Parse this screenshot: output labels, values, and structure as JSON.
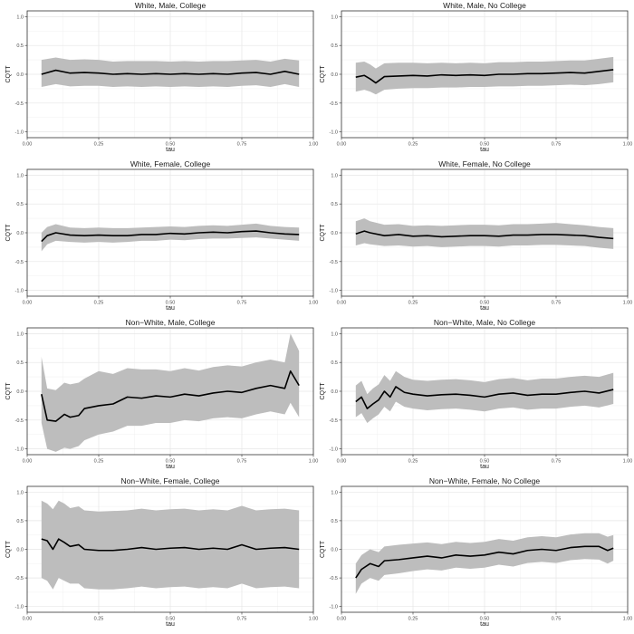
{
  "figure": {
    "xlabel": "tau",
    "ylabel": "CQTT"
  },
  "chart_data": [
    {
      "type": "line",
      "title": "White, Male, College",
      "xlabel": "tau",
      "ylabel": "CQTT",
      "xlim": [
        0,
        1
      ],
      "ylim": [
        -1.1,
        1.1
      ],
      "xticks": [
        0.0,
        0.25,
        0.5,
        0.75,
        1.0
      ],
      "xtick_labels": [
        "0.00",
        "0.25",
        "0.50",
        "0.75",
        "1.00"
      ],
      "yticks": [
        -1.0,
        -0.5,
        0.0,
        0.5,
        1.0
      ],
      "ytick_labels": [
        "-1.0",
        "-0.5",
        "0.0",
        "0.5",
        "1.0"
      ],
      "x": [
        0.05,
        0.1,
        0.15,
        0.2,
        0.25,
        0.3,
        0.35,
        0.4,
        0.45,
        0.5,
        0.55,
        0.6,
        0.65,
        0.7,
        0.75,
        0.8,
        0.85,
        0.9,
        0.95
      ],
      "series": [
        {
          "name": "estimate",
          "values": [
            0.0,
            0.07,
            0.02,
            0.03,
            0.02,
            0.0,
            0.01,
            0.0,
            0.01,
            0.0,
            0.01,
            0.0,
            0.01,
            0.0,
            0.02,
            0.03,
            0.0,
            0.05,
            0.0
          ]
        },
        {
          "name": "lower",
          "values": [
            -0.22,
            -0.17,
            -0.21,
            -0.2,
            -0.2,
            -0.22,
            -0.21,
            -0.22,
            -0.21,
            -0.22,
            -0.21,
            -0.22,
            -0.21,
            -0.22,
            -0.2,
            -0.19,
            -0.22,
            -0.17,
            -0.22
          ]
        },
        {
          "name": "upper",
          "values": [
            0.25,
            0.29,
            0.25,
            0.26,
            0.25,
            0.22,
            0.23,
            0.23,
            0.23,
            0.22,
            0.23,
            0.22,
            0.23,
            0.23,
            0.24,
            0.25,
            0.22,
            0.27,
            0.24
          ]
        }
      ]
    },
    {
      "type": "line",
      "title": "White, Male, No College",
      "xlabel": "tau",
      "ylabel": "CQTT",
      "xlim": [
        0,
        1
      ],
      "ylim": [
        -1.1,
        1.1
      ],
      "xticks": [
        0.0,
        0.25,
        0.5,
        0.75,
        1.0
      ],
      "xtick_labels": [
        "0.00",
        "0.25",
        "0.50",
        "0.75",
        "1.00"
      ],
      "yticks": [
        -1.0,
        -0.5,
        0.0,
        0.5,
        1.0
      ],
      "ytick_labels": [
        "-1.0",
        "-0.5",
        "0.0",
        "0.5",
        "1.0"
      ],
      "x": [
        0.05,
        0.08,
        0.1,
        0.12,
        0.15,
        0.2,
        0.25,
        0.3,
        0.35,
        0.4,
        0.45,
        0.5,
        0.55,
        0.6,
        0.65,
        0.7,
        0.75,
        0.8,
        0.85,
        0.9,
        0.95
      ],
      "series": [
        {
          "name": "estimate",
          "values": [
            -0.05,
            -0.02,
            -0.08,
            -0.15,
            -0.04,
            -0.03,
            -0.02,
            -0.03,
            -0.01,
            -0.02,
            -0.01,
            -0.02,
            0.0,
            0.0,
            0.01,
            0.01,
            0.02,
            0.03,
            0.02,
            0.05,
            0.08
          ]
        },
        {
          "name": "lower",
          "values": [
            -0.3,
            -0.27,
            -0.3,
            -0.35,
            -0.27,
            -0.25,
            -0.24,
            -0.24,
            -0.23,
            -0.23,
            -0.22,
            -0.22,
            -0.21,
            -0.21,
            -0.2,
            -0.2,
            -0.19,
            -0.18,
            -0.19,
            -0.17,
            -0.14
          ]
        },
        {
          "name": "upper",
          "values": [
            0.2,
            0.22,
            0.17,
            0.1,
            0.19,
            0.2,
            0.2,
            0.19,
            0.2,
            0.19,
            0.2,
            0.19,
            0.21,
            0.21,
            0.22,
            0.22,
            0.23,
            0.24,
            0.24,
            0.27,
            0.3
          ]
        }
      ]
    },
    {
      "type": "line",
      "title": "White, Female, College",
      "xlabel": "tau",
      "ylabel": "CQTT",
      "xlim": [
        0,
        1
      ],
      "ylim": [
        -1.1,
        1.1
      ],
      "xticks": [
        0.0,
        0.25,
        0.5,
        0.75,
        1.0
      ],
      "xtick_labels": [
        "0.00",
        "0.25",
        "0.50",
        "0.75",
        "1.00"
      ],
      "yticks": [
        -1.0,
        -0.5,
        0.0,
        0.5,
        1.0
      ],
      "ytick_labels": [
        "-1.0",
        "-0.5",
        "0.0",
        "0.5",
        "1.0"
      ],
      "x": [
        0.05,
        0.07,
        0.1,
        0.15,
        0.2,
        0.25,
        0.3,
        0.35,
        0.4,
        0.45,
        0.5,
        0.55,
        0.6,
        0.65,
        0.7,
        0.75,
        0.8,
        0.85,
        0.9,
        0.95
      ],
      "series": [
        {
          "name": "estimate",
          "values": [
            -0.15,
            -0.05,
            0.0,
            -0.04,
            -0.05,
            -0.04,
            -0.05,
            -0.05,
            -0.03,
            -0.03,
            -0.01,
            -0.02,
            0.0,
            0.01,
            0.0,
            0.02,
            0.03,
            0.0,
            -0.02,
            -0.03
          ]
        },
        {
          "name": "lower",
          "values": [
            -0.32,
            -0.2,
            -0.14,
            -0.16,
            -0.17,
            -0.16,
            -0.17,
            -0.16,
            -0.14,
            -0.14,
            -0.12,
            -0.13,
            -0.11,
            -0.1,
            -0.1,
            -0.09,
            -0.08,
            -0.1,
            -0.12,
            -0.14
          ]
        },
        {
          "name": "upper",
          "values": [
            0.0,
            0.1,
            0.15,
            0.09,
            0.08,
            0.09,
            0.08,
            0.08,
            0.09,
            0.1,
            0.11,
            0.1,
            0.12,
            0.13,
            0.12,
            0.14,
            0.16,
            0.12,
            0.1,
            0.09
          ]
        }
      ]
    },
    {
      "type": "line",
      "title": "White, Female, No College",
      "xlabel": "tau",
      "ylabel": "CQTT",
      "xlim": [
        0,
        1
      ],
      "ylim": [
        -1.1,
        1.1
      ],
      "xticks": [
        0.0,
        0.25,
        0.5,
        0.75,
        1.0
      ],
      "xtick_labels": [
        "0.00",
        "0.25",
        "0.50",
        "0.75",
        "1.00"
      ],
      "yticks": [
        -1.0,
        -0.5,
        0.0,
        0.5,
        1.0
      ],
      "ytick_labels": [
        "-1.0",
        "-0.5",
        "0.0",
        "0.5",
        "1.0"
      ],
      "x": [
        0.05,
        0.08,
        0.1,
        0.15,
        0.2,
        0.25,
        0.3,
        0.35,
        0.4,
        0.45,
        0.5,
        0.55,
        0.6,
        0.65,
        0.7,
        0.75,
        0.8,
        0.85,
        0.9,
        0.95
      ],
      "series": [
        {
          "name": "estimate",
          "values": [
            -0.02,
            0.03,
            0.0,
            -0.05,
            -0.03,
            -0.06,
            -0.05,
            -0.07,
            -0.06,
            -0.05,
            -0.05,
            -0.06,
            -0.04,
            -0.04,
            -0.03,
            -0.03,
            -0.04,
            -0.05,
            -0.08,
            -0.1
          ]
        },
        {
          "name": "lower",
          "values": [
            -0.22,
            -0.18,
            -0.2,
            -0.23,
            -0.22,
            -0.24,
            -0.23,
            -0.25,
            -0.24,
            -0.23,
            -0.23,
            -0.24,
            -0.22,
            -0.22,
            -0.21,
            -0.21,
            -0.22,
            -0.23,
            -0.26,
            -0.28
          ]
        },
        {
          "name": "upper",
          "values": [
            0.2,
            0.25,
            0.2,
            0.14,
            0.15,
            0.12,
            0.13,
            0.12,
            0.13,
            0.14,
            0.14,
            0.13,
            0.15,
            0.15,
            0.16,
            0.17,
            0.15,
            0.13,
            0.1,
            0.08
          ]
        }
      ]
    },
    {
      "type": "line",
      "title": "Non−White, Male, College",
      "xlabel": "tau",
      "ylabel": "CQTT",
      "xlim": [
        0,
        1
      ],
      "ylim": [
        -1.1,
        1.1
      ],
      "xticks": [
        0.0,
        0.25,
        0.5,
        0.75,
        1.0
      ],
      "xtick_labels": [
        "0.00",
        "0.25",
        "0.50",
        "0.75",
        "1.00"
      ],
      "yticks": [
        -1.0,
        -0.5,
        0.0,
        0.5,
        1.0
      ],
      "ytick_labels": [
        "-1.0",
        "-0.5",
        "0.0",
        "0.5",
        "1.0"
      ],
      "x": [
        0.05,
        0.07,
        0.1,
        0.13,
        0.15,
        0.18,
        0.2,
        0.25,
        0.3,
        0.35,
        0.4,
        0.45,
        0.5,
        0.55,
        0.6,
        0.65,
        0.7,
        0.75,
        0.8,
        0.85,
        0.9,
        0.92,
        0.95
      ],
      "series": [
        {
          "name": "estimate",
          "values": [
            -0.05,
            -0.5,
            -0.52,
            -0.4,
            -0.45,
            -0.42,
            -0.3,
            -0.25,
            -0.22,
            -0.1,
            -0.12,
            -0.08,
            -0.1,
            -0.05,
            -0.08,
            -0.03,
            0.0,
            -0.02,
            0.05,
            0.1,
            0.05,
            0.35,
            0.1
          ]
        },
        {
          "name": "lower",
          "values": [
            -0.55,
            -1.0,
            -1.05,
            -0.98,
            -1.0,
            -0.95,
            -0.85,
            -0.75,
            -0.7,
            -0.6,
            -0.6,
            -0.55,
            -0.55,
            -0.5,
            -0.52,
            -0.47,
            -0.45,
            -0.47,
            -0.4,
            -0.35,
            -0.4,
            -0.2,
            -0.45
          ]
        },
        {
          "name": "upper",
          "values": [
            0.6,
            0.05,
            0.02,
            0.15,
            0.12,
            0.15,
            0.22,
            0.35,
            0.3,
            0.4,
            0.38,
            0.38,
            0.35,
            0.4,
            0.36,
            0.42,
            0.45,
            0.43,
            0.5,
            0.55,
            0.5,
            1.0,
            0.7
          ]
        }
      ]
    },
    {
      "type": "line",
      "title": "Non−White, Male, No College",
      "xlabel": "tau",
      "ylabel": "CQTT",
      "xlim": [
        0,
        1
      ],
      "ylim": [
        -1.1,
        1.1
      ],
      "xticks": [
        0.0,
        0.25,
        0.5,
        0.75,
        1.0
      ],
      "xtick_labels": [
        "0.00",
        "0.25",
        "0.50",
        "0.75",
        "1.00"
      ],
      "yticks": [
        -1.0,
        -0.5,
        0.0,
        0.5,
        1.0
      ],
      "ytick_labels": [
        "-1.0",
        "-0.5",
        "0.0",
        "0.5",
        "1.0"
      ],
      "x": [
        0.05,
        0.07,
        0.09,
        0.11,
        0.13,
        0.15,
        0.17,
        0.19,
        0.22,
        0.25,
        0.3,
        0.35,
        0.4,
        0.45,
        0.5,
        0.55,
        0.6,
        0.65,
        0.7,
        0.75,
        0.8,
        0.85,
        0.9,
        0.95
      ],
      "series": [
        {
          "name": "estimate",
          "values": [
            -0.18,
            -0.1,
            -0.3,
            -0.22,
            -0.15,
            0.0,
            -0.1,
            0.08,
            -0.02,
            -0.05,
            -0.08,
            -0.06,
            -0.05,
            -0.07,
            -0.1,
            -0.05,
            -0.03,
            -0.07,
            -0.05,
            -0.05,
            -0.02,
            0.0,
            -0.03,
            0.03
          ]
        },
        {
          "name": "lower",
          "values": [
            -0.45,
            -0.38,
            -0.55,
            -0.47,
            -0.4,
            -0.27,
            -0.35,
            -0.18,
            -0.27,
            -0.3,
            -0.33,
            -0.31,
            -0.3,
            -0.32,
            -0.35,
            -0.3,
            -0.28,
            -0.32,
            -0.3,
            -0.3,
            -0.27,
            -0.25,
            -0.28,
            -0.22
          ]
        },
        {
          "name": "upper",
          "values": [
            0.1,
            0.18,
            -0.05,
            0.05,
            0.12,
            0.28,
            0.18,
            0.35,
            0.25,
            0.2,
            0.18,
            0.2,
            0.21,
            0.19,
            0.16,
            0.21,
            0.23,
            0.19,
            0.22,
            0.22,
            0.25,
            0.27,
            0.25,
            0.32
          ]
        }
      ]
    },
    {
      "type": "line",
      "title": "Non−White, Female, College",
      "xlabel": "tau",
      "ylabel": "CQTT",
      "xlim": [
        0,
        1
      ],
      "ylim": [
        -1.1,
        1.1
      ],
      "xticks": [
        0.0,
        0.25,
        0.5,
        0.75,
        1.0
      ],
      "xtick_labels": [
        "0.00",
        "0.25",
        "0.50",
        "0.75",
        "1.00"
      ],
      "yticks": [
        -1.0,
        -0.5,
        0.0,
        0.5,
        1.0
      ],
      "ytick_labels": [
        "-1.0",
        "-0.5",
        "0.0",
        "0.5",
        "1.0"
      ],
      "x": [
        0.05,
        0.07,
        0.09,
        0.11,
        0.13,
        0.15,
        0.18,
        0.2,
        0.25,
        0.3,
        0.35,
        0.4,
        0.45,
        0.5,
        0.55,
        0.6,
        0.65,
        0.7,
        0.75,
        0.8,
        0.85,
        0.9,
        0.95
      ],
      "series": [
        {
          "name": "estimate",
          "values": [
            0.18,
            0.15,
            0.0,
            0.18,
            0.12,
            0.05,
            0.08,
            0.0,
            -0.02,
            -0.02,
            0.0,
            0.03,
            0.0,
            0.02,
            0.03,
            0.0,
            0.02,
            0.0,
            0.08,
            0.0,
            0.02,
            0.03,
            0.0
          ]
        },
        {
          "name": "lower",
          "values": [
            -0.5,
            -0.55,
            -0.7,
            -0.5,
            -0.55,
            -0.6,
            -0.6,
            -0.68,
            -0.7,
            -0.7,
            -0.68,
            -0.65,
            -0.68,
            -0.66,
            -0.65,
            -0.68,
            -0.66,
            -0.68,
            -0.6,
            -0.68,
            -0.66,
            -0.65,
            -0.68
          ]
        },
        {
          "name": "upper",
          "values": [
            0.85,
            0.8,
            0.7,
            0.85,
            0.8,
            0.72,
            0.75,
            0.68,
            0.66,
            0.67,
            0.68,
            0.71,
            0.68,
            0.7,
            0.71,
            0.68,
            0.7,
            0.68,
            0.76,
            0.68,
            0.7,
            0.71,
            0.68
          ]
        }
      ]
    },
    {
      "type": "line",
      "title": "Non−White, Female, No College",
      "xlabel": "tau",
      "ylabel": "CQTT",
      "xlim": [
        0,
        1
      ],
      "ylim": [
        -1.1,
        1.1
      ],
      "xticks": [
        0.0,
        0.25,
        0.5,
        0.75,
        1.0
      ],
      "xtick_labels": [
        "0.00",
        "0.25",
        "0.50",
        "0.75",
        "1.00"
      ],
      "yticks": [
        -1.0,
        -0.5,
        0.0,
        0.5,
        1.0
      ],
      "ytick_labels": [
        "-1.0",
        "-0.5",
        "0.0",
        "0.5",
        "1.0"
      ],
      "x": [
        0.05,
        0.07,
        0.1,
        0.13,
        0.15,
        0.2,
        0.25,
        0.3,
        0.35,
        0.4,
        0.45,
        0.5,
        0.55,
        0.6,
        0.65,
        0.7,
        0.75,
        0.8,
        0.85,
        0.9,
        0.93,
        0.95
      ],
      "series": [
        {
          "name": "estimate",
          "values": [
            -0.5,
            -0.35,
            -0.25,
            -0.3,
            -0.2,
            -0.18,
            -0.15,
            -0.12,
            -0.15,
            -0.1,
            -0.12,
            -0.1,
            -0.05,
            -0.08,
            -0.02,
            0.0,
            -0.02,
            0.03,
            0.05,
            0.05,
            -0.02,
            0.02
          ]
        },
        {
          "name": "lower",
          "values": [
            -0.78,
            -0.6,
            -0.5,
            -0.55,
            -0.45,
            -0.42,
            -0.38,
            -0.35,
            -0.37,
            -0.32,
            -0.34,
            -0.32,
            -0.27,
            -0.3,
            -0.24,
            -0.22,
            -0.24,
            -0.19,
            -0.17,
            -0.18,
            -0.25,
            -0.2
          ]
        },
        {
          "name": "upper",
          "values": [
            -0.25,
            -0.1,
            0.0,
            -0.05,
            0.05,
            0.08,
            0.1,
            0.12,
            0.09,
            0.13,
            0.11,
            0.13,
            0.18,
            0.15,
            0.21,
            0.23,
            0.21,
            0.26,
            0.28,
            0.28,
            0.22,
            0.25
          ]
        }
      ]
    }
  ]
}
